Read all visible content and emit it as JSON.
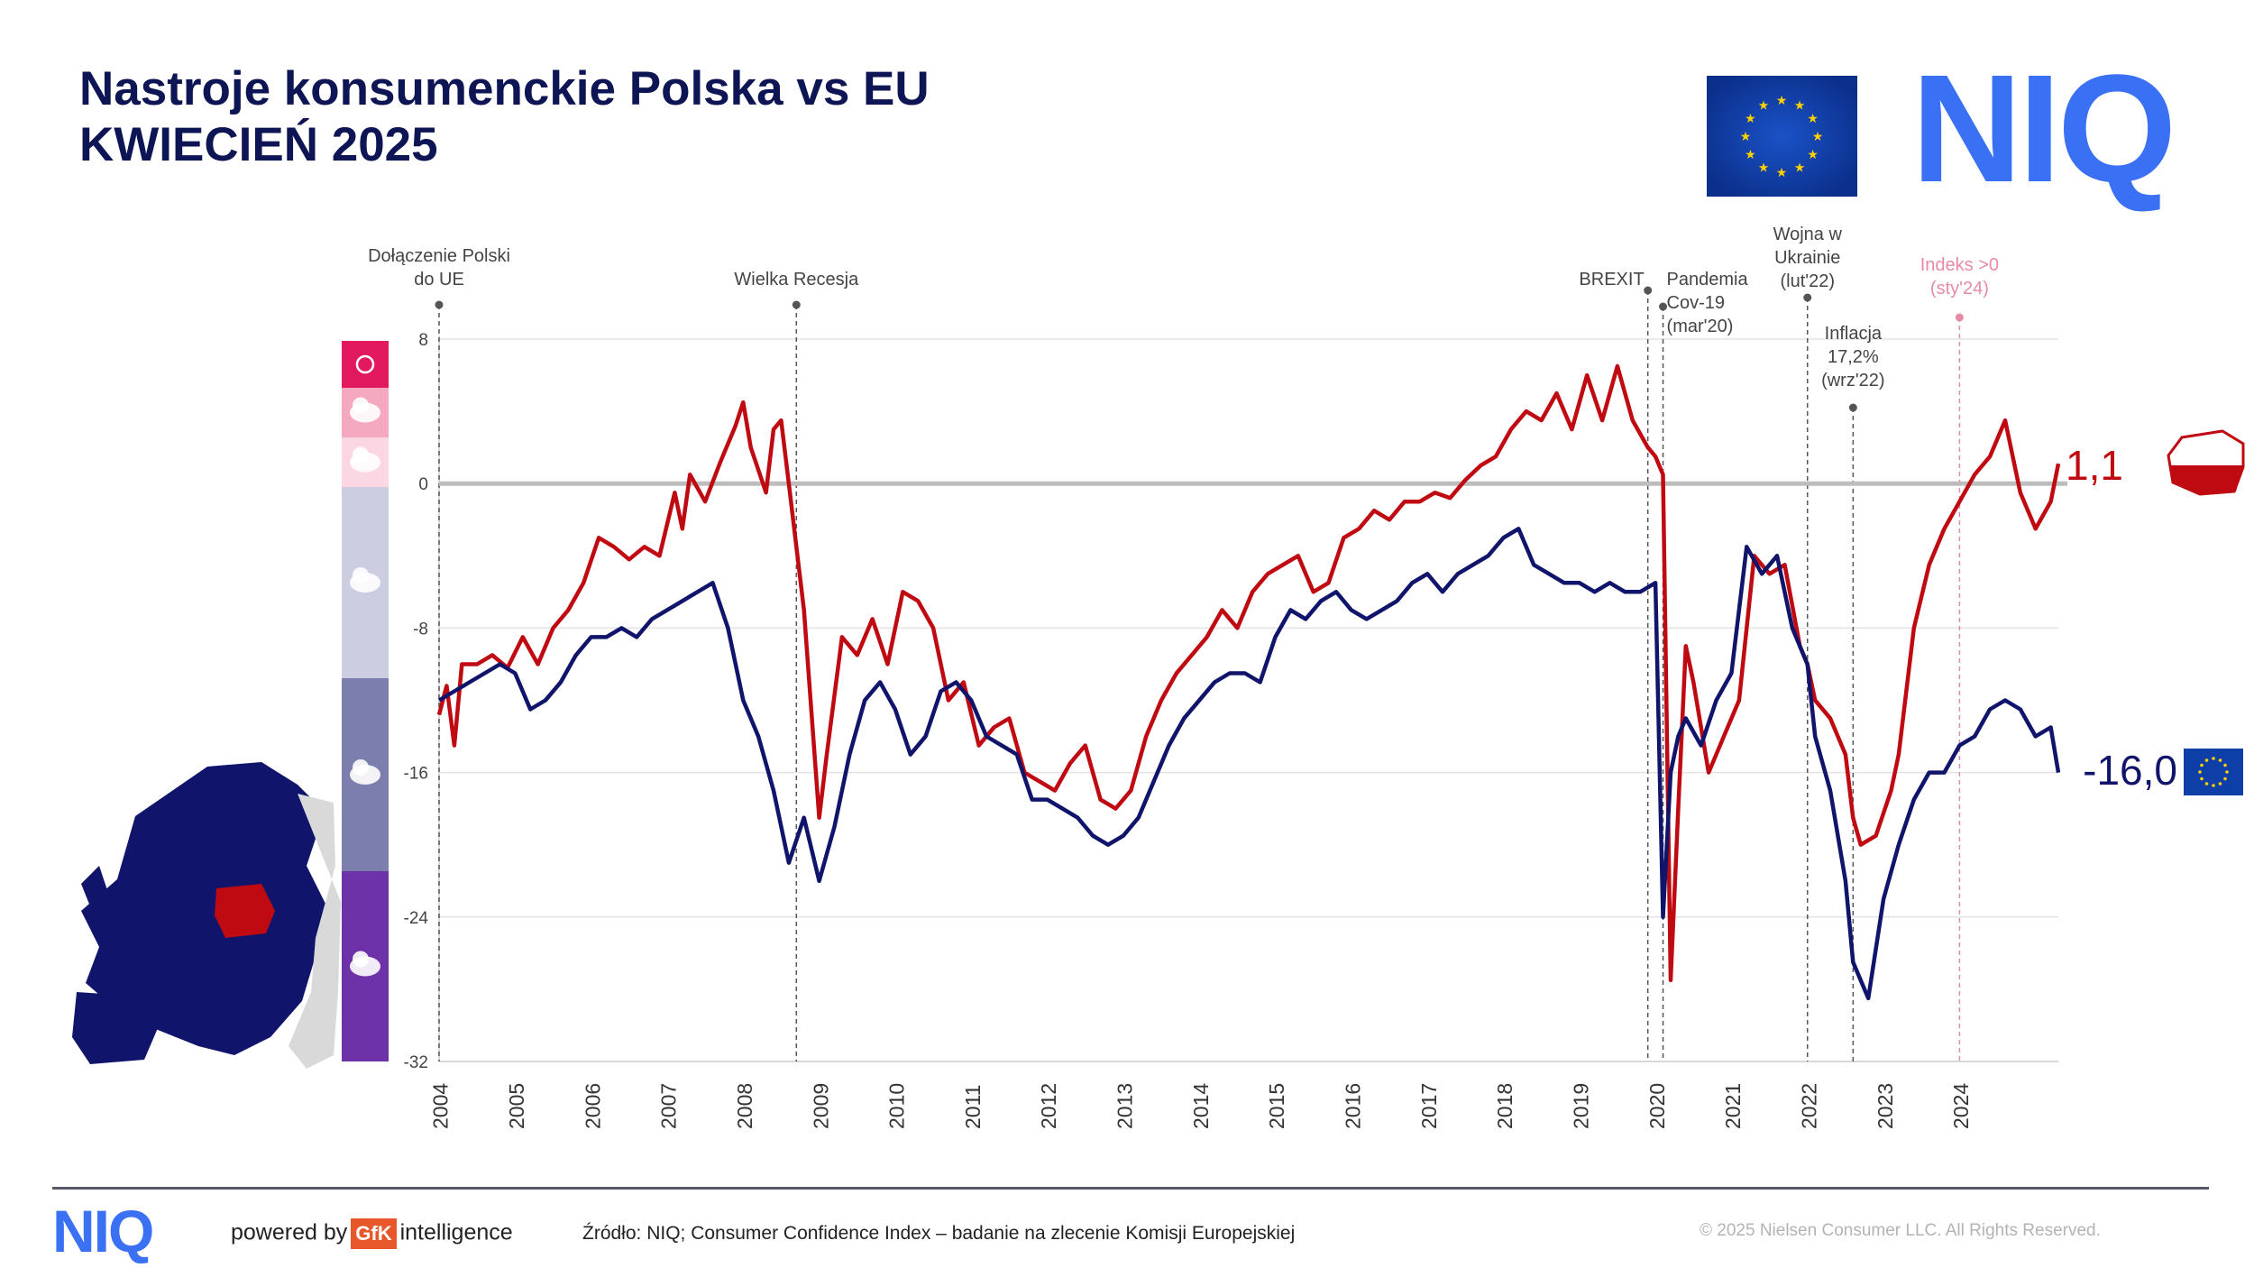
{
  "header": {
    "title_line1": "Nastroje konsumenckie Polska vs EU",
    "title_line2": "KWIECIEŃ 2025",
    "logo_text": "NIQ"
  },
  "footer": {
    "logo_text": "NIQ",
    "powered_by": "powered by",
    "gfk": "GfK",
    "intelligence": "intelligence",
    "source": "Źródło: NIQ; Consumer  Confidence  Index  – badanie na zlecenie Komisji Europejskiej",
    "copyright": "© 2025 Nielsen Consumer LLC. All Rights Reserved."
  },
  "colors": {
    "poland": "#c00a12",
    "eu": "#10146b",
    "zero_line": "#bdbdbd",
    "grid": "#e3e3e3",
    "event_line": "#555555",
    "event_pink": "#e88aa6",
    "brand_blue": "#3a70f4"
  },
  "icons": [
    "sun-icon",
    "sun-cloud-icon",
    "cloud-light-icon",
    "cloud-icon",
    "cloud-rain-icon",
    "cloud-storm-icon",
    "eu-flag-icon",
    "poland-map-icon",
    "europe-map-icon"
  ],
  "sentiment_scale": [
    {
      "icon": "sun-icon",
      "color": "#e2195e"
    },
    {
      "icon": "sun-cloud-icon",
      "color": "#f5a9c1"
    },
    {
      "icon": "cloud-light-icon",
      "color": "#fbd6e3"
    },
    {
      "icon": "cloud-icon",
      "color": "#cdcde2"
    },
    {
      "icon": "cloud-rain-icon",
      "color": "#7c7fad"
    },
    {
      "icon": "cloud-storm-icon",
      "color": "#6e32a8"
    }
  ],
  "chart_data": {
    "type": "line",
    "ylim": [
      -32,
      8
    ],
    "yticks": [
      "8",
      "0",
      "-8",
      "-16",
      "-24",
      "-32"
    ],
    "ytick_values": [
      8,
      0,
      -8,
      -16,
      -24,
      -32
    ],
    "xlim": [
      2004.0,
      2025.3
    ],
    "xticks": [
      "2004",
      "2005",
      "2006",
      "2007",
      "2008",
      "2009",
      "2010",
      "2011",
      "2012",
      "2013",
      "2014",
      "2015",
      "2016",
      "2017",
      "2018",
      "2019",
      "2020",
      "2021",
      "2022",
      "2023",
      "2024"
    ],
    "grid": true,
    "series": [
      {
        "name": "Polska",
        "color": "#c00a12",
        "last_label": "1,1",
        "x": [
          2004.0,
          2004.1,
          2004.2,
          2004.3,
          2004.5,
          2004.7,
          2004.9,
          2005.1,
          2005.3,
          2005.5,
          2005.7,
          2005.9,
          2006.1,
          2006.3,
          2006.5,
          2006.7,
          2006.9,
          2007.1,
          2007.2,
          2007.3,
          2007.5,
          2007.7,
          2007.9,
          2008.0,
          2008.1,
          2008.3,
          2008.4,
          2008.5,
          2008.6,
          2008.8,
          2009.0,
          2009.1,
          2009.3,
          2009.5,
          2009.7,
          2009.9,
          2010.1,
          2010.3,
          2010.5,
          2010.7,
          2010.9,
          2011.1,
          2011.3,
          2011.5,
          2011.7,
          2011.9,
          2012.1,
          2012.3,
          2012.5,
          2012.7,
          2012.9,
          2013.1,
          2013.3,
          2013.5,
          2013.7,
          2013.9,
          2014.1,
          2014.3,
          2014.5,
          2014.7,
          2014.9,
          2015.1,
          2015.3,
          2015.5,
          2015.7,
          2015.9,
          2016.1,
          2016.3,
          2016.5,
          2016.7,
          2016.9,
          2017.1,
          2017.3,
          2017.5,
          2017.7,
          2017.9,
          2018.1,
          2018.3,
          2018.5,
          2018.7,
          2018.9,
          2019.1,
          2019.3,
          2019.5,
          2019.7,
          2019.9,
          2020.0,
          2020.1,
          2020.2,
          2020.3,
          2020.4,
          2020.5,
          2020.7,
          2020.9,
          2021.1,
          2021.2,
          2021.3,
          2021.5,
          2021.7,
          2021.9,
          2022.0,
          2022.1,
          2022.3,
          2022.5,
          2022.6,
          2022.7,
          2022.9,
          2023.1,
          2023.2,
          2023.4,
          2023.6,
          2023.8,
          2024.0,
          2024.2,
          2024.4,
          2024.6,
          2024.8,
          2025.0,
          2025.2,
          2025.3
        ],
        "y": [
          -12.8,
          -11.2,
          -14.5,
          -10.0,
          -10.0,
          -9.5,
          -10.2,
          -8.5,
          -10.0,
          -8.0,
          -7.0,
          -5.5,
          -3.0,
          -3.5,
          -4.2,
          -3.5,
          -4.0,
          -0.5,
          -2.5,
          0.5,
          -1.0,
          1.2,
          3.2,
          4.5,
          2.0,
          -0.5,
          3.0,
          3.5,
          0.0,
          -7.0,
          -18.5,
          -15.0,
          -8.5,
          -9.5,
          -7.5,
          -10.0,
          -6.0,
          -6.5,
          -8.0,
          -12.0,
          -11.0,
          -14.5,
          -13.5,
          -13.0,
          -16.0,
          -16.5,
          -17.0,
          -15.5,
          -14.5,
          -17.5,
          -18.0,
          -17.0,
          -14.0,
          -12.0,
          -10.5,
          -9.5,
          -8.5,
          -7.0,
          -8.0,
          -6.0,
          -5.0,
          -4.5,
          -4.0,
          -6.0,
          -5.5,
          -3.0,
          -2.5,
          -1.5,
          -2.0,
          -1.0,
          -1.0,
          -0.5,
          -0.8,
          0.2,
          1.0,
          1.5,
          3.0,
          4.0,
          3.5,
          5.0,
          3.0,
          6.0,
          3.5,
          6.5,
          3.5,
          2.0,
          1.5,
          0.5,
          -27.5,
          -18.0,
          -9.0,
          -11.0,
          -16.0,
          -14.0,
          -12.0,
          -8.0,
          -4.0,
          -5.0,
          -4.5,
          -9.0,
          -10.0,
          -12.0,
          -13.0,
          -15.0,
          -18.5,
          -20.0,
          -19.5,
          -17.0,
          -15.0,
          -8.0,
          -4.5,
          -2.5,
          -1.0,
          0.5,
          1.5,
          3.5,
          -0.5,
          -2.5,
          -1.0,
          1.1
        ]
      },
      {
        "name": "EU",
        "color": "#10146b",
        "last_label": "-16,0",
        "x": [
          2004.0,
          2004.2,
          2004.4,
          2004.6,
          2004.8,
          2005.0,
          2005.2,
          2005.4,
          2005.6,
          2005.8,
          2006.0,
          2006.2,
          2006.4,
          2006.6,
          2006.8,
          2007.0,
          2007.2,
          2007.4,
          2007.6,
          2007.8,
          2008.0,
          2008.2,
          2008.4,
          2008.6,
          2008.8,
          2009.0,
          2009.2,
          2009.4,
          2009.6,
          2009.8,
          2010.0,
          2010.2,
          2010.4,
          2010.6,
          2010.8,
          2011.0,
          2011.2,
          2011.4,
          2011.6,
          2011.8,
          2012.0,
          2012.2,
          2012.4,
          2012.6,
          2012.8,
          2013.0,
          2013.2,
          2013.4,
          2013.6,
          2013.8,
          2014.0,
          2014.2,
          2014.4,
          2014.6,
          2014.8,
          2015.0,
          2015.2,
          2015.4,
          2015.6,
          2015.8,
          2016.0,
          2016.2,
          2016.4,
          2016.6,
          2016.8,
          2017.0,
          2017.2,
          2017.4,
          2017.6,
          2017.8,
          2018.0,
          2018.2,
          2018.4,
          2018.6,
          2018.8,
          2019.0,
          2019.2,
          2019.4,
          2019.6,
          2019.8,
          2020.0,
          2020.1,
          2020.2,
          2020.3,
          2020.4,
          2020.6,
          2020.8,
          2021.0,
          2021.2,
          2021.4,
          2021.6,
          2021.8,
          2022.0,
          2022.1,
          2022.3,
          2022.5,
          2022.6,
          2022.8,
          2023.0,
          2023.2,
          2023.4,
          2023.6,
          2023.8,
          2024.0,
          2024.2,
          2024.4,
          2024.6,
          2024.8,
          2025.0,
          2025.2,
          2025.3
        ],
        "y": [
          -12.0,
          -11.5,
          -11.0,
          -10.5,
          -10.0,
          -10.5,
          -12.5,
          -12.0,
          -11.0,
          -9.5,
          -8.5,
          -8.5,
          -8.0,
          -8.5,
          -7.5,
          -7.0,
          -6.5,
          -6.0,
          -5.5,
          -8.0,
          -12.0,
          -14.0,
          -17.0,
          -21.0,
          -18.5,
          -22.0,
          -19.0,
          -15.0,
          -12.0,
          -11.0,
          -12.5,
          -15.0,
          -14.0,
          -11.5,
          -11.0,
          -12.0,
          -14.0,
          -14.5,
          -15.0,
          -17.5,
          -17.5,
          -18.0,
          -18.5,
          -19.5,
          -20.0,
          -19.5,
          -18.5,
          -16.5,
          -14.5,
          -13.0,
          -12.0,
          -11.0,
          -10.5,
          -10.5,
          -11.0,
          -8.5,
          -7.0,
          -7.5,
          -6.5,
          -6.0,
          -7.0,
          -7.5,
          -7.0,
          -6.5,
          -5.5,
          -5.0,
          -6.0,
          -5.0,
          -4.5,
          -4.0,
          -3.0,
          -2.5,
          -4.5,
          -5.0,
          -5.5,
          -5.5,
          -6.0,
          -5.5,
          -6.0,
          -6.0,
          -5.5,
          -24.0,
          -16.0,
          -14.0,
          -13.0,
          -14.5,
          -12.0,
          -10.5,
          -3.5,
          -5.0,
          -4.0,
          -8.0,
          -10.0,
          -14.0,
          -17.0,
          -22.0,
          -26.5,
          -28.5,
          -23.0,
          -20.0,
          -17.5,
          -16.0,
          -16.0,
          -14.5,
          -14.0,
          -12.5,
          -12.0,
          -12.5,
          -14.0,
          -13.5,
          -16.0
        ]
      }
    ],
    "events": [
      {
        "x": 2004.0,
        "label_lines": [
          "Dołączenie Polski",
          "do UE"
        ],
        "pink": false
      },
      {
        "x": 2008.7,
        "label_lines": [
          "Wielka Recesja"
        ],
        "pink": false
      },
      {
        "x": 2019.9,
        "label_lines": [
          "BREXIT"
        ],
        "pink": false
      },
      {
        "x": 2020.1,
        "label_lines": [
          "Pandemia",
          "Cov-19",
          "(mar'20)"
        ],
        "pink": false
      },
      {
        "x": 2022.0,
        "label_lines": [
          "Wojna w",
          "Ukrainie",
          "(lut'22)"
        ],
        "pink": false
      },
      {
        "x": 2022.6,
        "label_lines": [
          "Inflacja",
          "17,2%",
          "(wrz'22)"
        ],
        "pink": false
      },
      {
        "x": 2024.0,
        "label_lines": [
          "Indeks >0",
          "(sty'24)"
        ],
        "pink": true
      }
    ]
  }
}
